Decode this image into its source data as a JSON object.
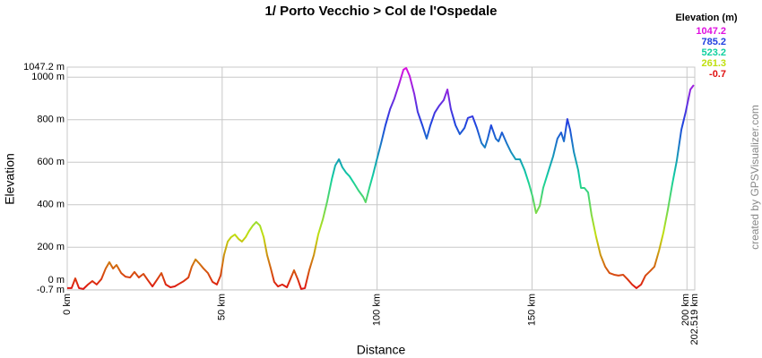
{
  "chart_data": {
    "type": "line",
    "title": "1/ Porto Vecchio > Col de l'Ospedale",
    "x_label": "Distance",
    "y_label": "Elevation",
    "credit": "created by GPSVisualizer.com",
    "grid": true,
    "xlim": [
      0,
      202.519
    ],
    "ylim": [
      -0.7,
      1047.2
    ],
    "xticks": [
      {
        "value": 0,
        "label": "0 km"
      },
      {
        "value": 50,
        "label": "50 km"
      },
      {
        "value": 100,
        "label": "100 km"
      },
      {
        "value": 150,
        "label": "150 km"
      },
      {
        "value": 200,
        "label": "200 km"
      },
      {
        "value": 202.519,
        "label": "202.519 km"
      }
    ],
    "yticks": [
      {
        "value": -0.7,
        "label": "-0.7 m"
      },
      {
        "value": 0,
        "label": "0 m"
      },
      {
        "value": 200,
        "label": "200 m"
      },
      {
        "value": 400,
        "label": "400 m"
      },
      {
        "value": 600,
        "label": "600 m"
      },
      {
        "value": 800,
        "label": "800 m"
      },
      {
        "value": 1000,
        "label": "1000 m"
      },
      {
        "value": 1047.2,
        "label": "1047.2 m"
      }
    ],
    "color_scale": {
      "title": "Elevation (m)",
      "stops": [
        {
          "value": 1047.2,
          "color": "#e010e0"
        },
        {
          "value": 785.2,
          "color": "#2040e0"
        },
        {
          "value": 523.2,
          "color": "#10d0a0"
        },
        {
          "value": 261.3,
          "color": "#c0e010"
        },
        {
          "value": -0.7,
          "color": "#e01010"
        }
      ]
    },
    "x": [
      0.0,
      1.4,
      2.6,
      3.8,
      5.2,
      6.7,
      8.1,
      9.5,
      11.0,
      12.4,
      13.6,
      14.8,
      15.9,
      17.4,
      18.8,
      20.3,
      21.7,
      23.1,
      24.6,
      26.0,
      27.5,
      28.9,
      30.4,
      31.8,
      33.3,
      34.7,
      36.2,
      37.6,
      39.1,
      40.2,
      41.4,
      42.5,
      44.0,
      45.4,
      46.9,
      48.3,
      49.5,
      50.6,
      51.8,
      52.9,
      54.1,
      55.3,
      56.4,
      57.6,
      58.7,
      59.9,
      61.0,
      62.2,
      63.4,
      64.5,
      65.7,
      66.8,
      68.0,
      69.4,
      70.9,
      72.0,
      73.2,
      74.4,
      75.5,
      76.7,
      78.1,
      79.6,
      81.0,
      82.5,
      83.9,
      85.4,
      86.5,
      87.7,
      88.8,
      90.0,
      91.1,
      92.6,
      94.0,
      95.5,
      96.3,
      97.5,
      98.7,
      99.8,
      101.3,
      102.7,
      104.2,
      105.6,
      107.0,
      108.5,
      109.4,
      110.5,
      112.0,
      113.1,
      114.6,
      116.0,
      117.2,
      118.6,
      120.1,
      121.5,
      122.7,
      123.8,
      125.3,
      126.7,
      128.2,
      129.3,
      130.8,
      132.2,
      133.7,
      134.8,
      135.7,
      136.8,
      138.3,
      139.2,
      140.3,
      141.8,
      143.2,
      144.7,
      146.1,
      147.6,
      149.0,
      150.2,
      151.3,
      152.5,
      153.6,
      155.4,
      156.8,
      158.2,
      159.4,
      160.3,
      161.4,
      162.3,
      163.5,
      164.9,
      165.8,
      166.9,
      168.1,
      169.2,
      170.7,
      172.1,
      173.6,
      175.0,
      176.5,
      177.9,
      179.4,
      180.8,
      182.3,
      183.7,
      185.2,
      186.6,
      188.1,
      189.5,
      191.0,
      192.4,
      193.8,
      195.3,
      196.7,
      198.2,
      199.6,
      201.1,
      202.2
    ],
    "values": [
      8,
      8,
      54,
      8,
      4,
      25,
      41,
      25,
      50,
      100,
      130,
      100,
      117,
      79,
      62,
      58,
      84,
      58,
      75,
      46,
      16,
      46,
      79,
      25,
      12,
      16,
      29,
      41,
      58,
      109,
      143,
      126,
      100,
      79,
      37,
      25,
      67,
      164,
      227,
      248,
      260,
      239,
      227,
      248,
      277,
      302,
      319,
      302,
      248,
      164,
      100,
      37,
      16,
      25,
      12,
      50,
      92,
      50,
      4,
      8,
      92,
      164,
      260,
      332,
      416,
      521,
      585,
      614,
      576,
      551,
      534,
      500,
      467,
      437,
      412,
      479,
      542,
      606,
      690,
      774,
      850,
      900,
      963,
      1035,
      1043,
      1006,
      921,
      837,
      774,
      711,
      774,
      833,
      867,
      892,
      942,
      850,
      774,
      732,
      761,
      808,
      816,
      761,
      690,
      669,
      711,
      774,
      711,
      698,
      740,
      690,
      648,
      614,
      614,
      563,
      500,
      437,
      361,
      395,
      479,
      563,
      627,
      711,
      740,
      698,
      803,
      753,
      648,
      563,
      479,
      479,
      458,
      353,
      248,
      164,
      109,
      79,
      71,
      67,
      71,
      50,
      25,
      8,
      25,
      67,
      88,
      109,
      185,
      269,
      374,
      500,
      606,
      753,
      837,
      942,
      963
    ]
  }
}
